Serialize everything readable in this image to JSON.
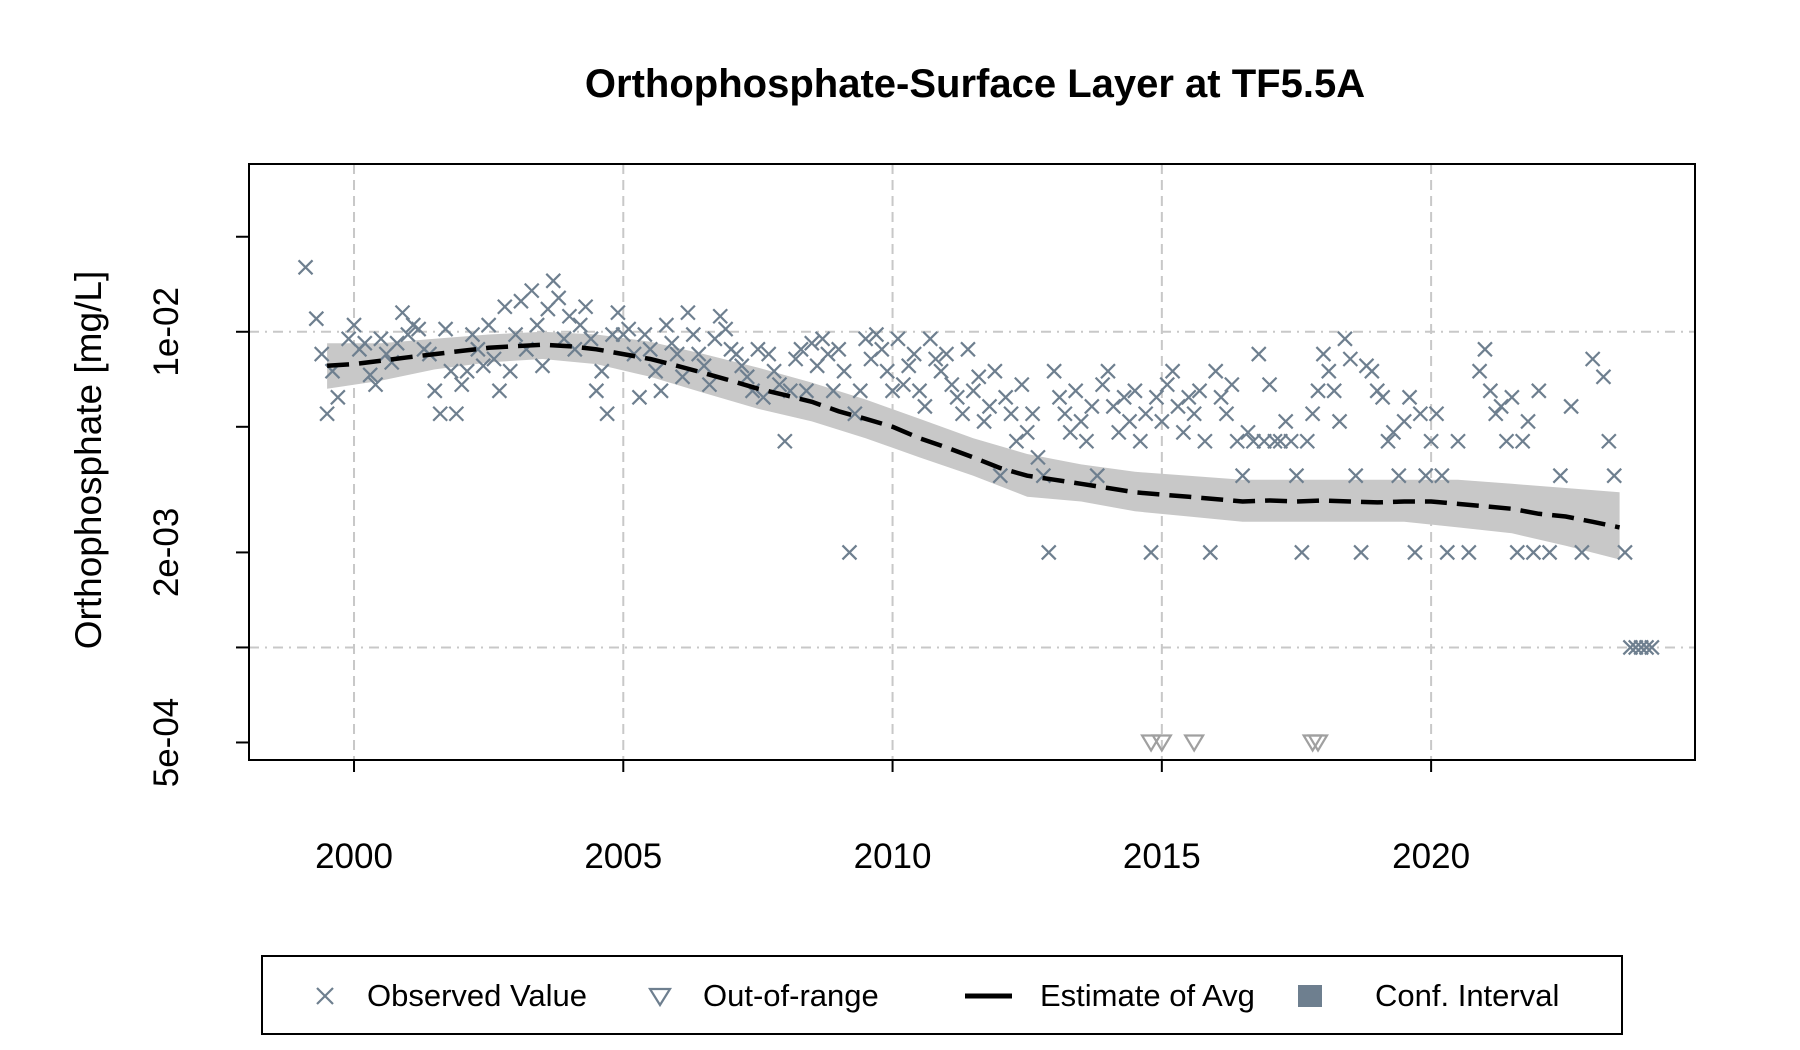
{
  "chart_data": {
    "type": "scatter",
    "title": "Orthophosphate-Surface Layer at TF5.5A",
    "ylabel": "Orthophosphate [mg/L]",
    "xlabel": "",
    "xlim": [
      1998.05,
      2024.9
    ],
    "x_ticks": [
      2000,
      2005,
      2010,
      2015,
      2020
    ],
    "x_tick_labels": [
      "2000",
      "2005",
      "2010",
      "2015",
      "2020"
    ],
    "y_scale": "log",
    "ylim": [
      0.00044,
      0.034
    ],
    "y_ticks": [
      0.0005,
      0.001,
      0.002,
      0.005,
      0.01,
      0.02
    ],
    "y_tick_labels": [
      {
        "value": 0.0005,
        "label": "5e-04"
      },
      {
        "value": 0.002,
        "label": "2e-03"
      },
      {
        "value": 0.01,
        "label": "1e-02"
      }
    ],
    "y_grid": [
      0.001,
      0.01
    ],
    "grid": true,
    "colors": {
      "points": "#6e7f8f",
      "out_of_range": "#a0a0a0",
      "line": "#000000",
      "ci": "#c8c8c8",
      "legend_ci": "#6e7f8f"
    },
    "legend": {
      "placement": "bottom",
      "items": [
        {
          "label": "Observed Value",
          "symbol": "x"
        },
        {
          "label": "Out-of-range",
          "symbol": "triangle-down"
        },
        {
          "label": "Estimate of Avg",
          "symbol": "dashed-line"
        },
        {
          "label": "Conf. Interval",
          "symbol": "square"
        }
      ]
    },
    "observed": [
      [
        1999.1,
        0.016
      ],
      [
        1999.3,
        0.011
      ],
      [
        1999.4,
        0.0085
      ],
      [
        1999.5,
        0.0055
      ],
      [
        1999.6,
        0.0075
      ],
      [
        1999.7,
        0.0062
      ],
      [
        1999.9,
        0.0095
      ],
      [
        2000.0,
        0.0105
      ],
      [
        2000.1,
        0.0088
      ],
      [
        2000.2,
        0.0092
      ],
      [
        2000.3,
        0.0073
      ],
      [
        2000.4,
        0.0068
      ],
      [
        2000.5,
        0.0095
      ],
      [
        2000.6,
        0.0085
      ],
      [
        2000.7,
        0.008
      ],
      [
        2000.8,
        0.0092
      ],
      [
        2000.9,
        0.0115
      ],
      [
        2001.0,
        0.0098
      ],
      [
        2001.1,
        0.0105
      ],
      [
        2001.2,
        0.0102
      ],
      [
        2001.3,
        0.0088
      ],
      [
        2001.4,
        0.0085
      ],
      [
        2001.5,
        0.0065
      ],
      [
        2001.6,
        0.0055
      ],
      [
        2001.7,
        0.0102
      ],
      [
        2001.8,
        0.0075
      ],
      [
        2001.9,
        0.0055
      ],
      [
        2002.0,
        0.0068
      ],
      [
        2002.1,
        0.0075
      ],
      [
        2002.2,
        0.0098
      ],
      [
        2002.3,
        0.0088
      ],
      [
        2002.4,
        0.0078
      ],
      [
        2002.5,
        0.0105
      ],
      [
        2002.6,
        0.0082
      ],
      [
        2002.7,
        0.0065
      ],
      [
        2002.8,
        0.012
      ],
      [
        2002.9,
        0.0075
      ],
      [
        2003.0,
        0.0098
      ],
      [
        2003.1,
        0.0125
      ],
      [
        2003.2,
        0.0088
      ],
      [
        2003.3,
        0.0135
      ],
      [
        2003.4,
        0.0105
      ],
      [
        2003.5,
        0.0078
      ],
      [
        2003.6,
        0.0118
      ],
      [
        2003.7,
        0.0145
      ],
      [
        2003.8,
        0.0128
      ],
      [
        2003.9,
        0.0095
      ],
      [
        2004.0,
        0.0112
      ],
      [
        2004.1,
        0.0088
      ],
      [
        2004.2,
        0.0105
      ],
      [
        2004.3,
        0.012
      ],
      [
        2004.4,
        0.0095
      ],
      [
        2004.5,
        0.0065
      ],
      [
        2004.6,
        0.0075
      ],
      [
        2004.7,
        0.0055
      ],
      [
        2004.8,
        0.0098
      ],
      [
        2004.9,
        0.0115
      ],
      [
        2005.0,
        0.0098
      ],
      [
        2005.1,
        0.0102
      ],
      [
        2005.2,
        0.0085
      ],
      [
        2005.3,
        0.0062
      ],
      [
        2005.4,
        0.0098
      ],
      [
        2005.5,
        0.0088
      ],
      [
        2005.6,
        0.0075
      ],
      [
        2005.7,
        0.0065
      ],
      [
        2005.8,
        0.0105
      ],
      [
        2005.9,
        0.0092
      ],
      [
        2006.0,
        0.0085
      ],
      [
        2006.1,
        0.0072
      ],
      [
        2006.2,
        0.0115
      ],
      [
        2006.3,
        0.0098
      ],
      [
        2006.4,
        0.0085
      ],
      [
        2006.5,
        0.0078
      ],
      [
        2006.6,
        0.0068
      ],
      [
        2006.7,
        0.0095
      ],
      [
        2006.8,
        0.0112
      ],
      [
        2006.9,
        0.0102
      ],
      [
        2007.0,
        0.0088
      ],
      [
        2007.1,
        0.0085
      ],
      [
        2007.2,
        0.0078
      ],
      [
        2007.3,
        0.0072
      ],
      [
        2007.4,
        0.0065
      ],
      [
        2007.5,
        0.0088
      ],
      [
        2007.6,
        0.0062
      ],
      [
        2007.7,
        0.0085
      ],
      [
        2007.8,
        0.0075
      ],
      [
        2007.9,
        0.0068
      ],
      [
        2008.0,
        0.0045
      ],
      [
        2008.1,
        0.0065
      ],
      [
        2008.2,
        0.0082
      ],
      [
        2008.3,
        0.0088
      ],
      [
        2008.4,
        0.0065
      ],
      [
        2008.5,
        0.0092
      ],
      [
        2008.6,
        0.0078
      ],
      [
        2008.7,
        0.0095
      ],
      [
        2008.8,
        0.0085
      ],
      [
        2008.9,
        0.0065
      ],
      [
        2009.0,
        0.0088
      ],
      [
        2009.1,
        0.0075
      ],
      [
        2009.2,
        0.002
      ],
      [
        2009.3,
        0.0055
      ],
      [
        2009.4,
        0.0065
      ],
      [
        2009.5,
        0.0095
      ],
      [
        2009.6,
        0.0082
      ],
      [
        2009.7,
        0.0098
      ],
      [
        2009.8,
        0.0088
      ],
      [
        2009.9,
        0.0075
      ],
      [
        2010.0,
        0.0065
      ],
      [
        2010.1,
        0.0095
      ],
      [
        2010.2,
        0.0068
      ],
      [
        2010.3,
        0.0078
      ],
      [
        2010.4,
        0.0085
      ],
      [
        2010.5,
        0.0065
      ],
      [
        2010.6,
        0.0058
      ],
      [
        2010.7,
        0.0095
      ],
      [
        2010.8,
        0.0082
      ],
      [
        2010.9,
        0.0075
      ],
      [
        2011.0,
        0.0085
      ],
      [
        2011.1,
        0.0068
      ],
      [
        2011.2,
        0.0062
      ],
      [
        2011.3,
        0.0055
      ],
      [
        2011.4,
        0.0088
      ],
      [
        2011.5,
        0.0065
      ],
      [
        2011.6,
        0.0072
      ],
      [
        2011.7,
        0.0052
      ],
      [
        2011.8,
        0.0058
      ],
      [
        2011.9,
        0.0075
      ],
      [
        2012.0,
        0.0035
      ],
      [
        2012.1,
        0.0062
      ],
      [
        2012.2,
        0.0055
      ],
      [
        2012.3,
        0.0045
      ],
      [
        2012.4,
        0.0068
      ],
      [
        2012.5,
        0.0048
      ],
      [
        2012.6,
        0.0055
      ],
      [
        2012.7,
        0.004
      ],
      [
        2012.8,
        0.0035
      ],
      [
        2012.9,
        0.002
      ],
      [
        2013.0,
        0.0075
      ],
      [
        2013.1,
        0.0062
      ],
      [
        2013.2,
        0.0055
      ],
      [
        2013.3,
        0.0048
      ],
      [
        2013.4,
        0.0065
      ],
      [
        2013.5,
        0.0052
      ],
      [
        2013.6,
        0.0045
      ],
      [
        2013.7,
        0.0058
      ],
      [
        2013.8,
        0.0035
      ],
      [
        2013.9,
        0.0068
      ],
      [
        2014.0,
        0.0075
      ],
      [
        2014.1,
        0.0058
      ],
      [
        2014.2,
        0.0048
      ],
      [
        2014.3,
        0.0062
      ],
      [
        2014.4,
        0.0052
      ],
      [
        2014.5,
        0.0065
      ],
      [
        2014.6,
        0.0045
      ],
      [
        2014.7,
        0.0055
      ],
      [
        2014.8,
        0.002
      ],
      [
        2014.9,
        0.0062
      ],
      [
        2015.0,
        0.0052
      ],
      [
        2015.1,
        0.0068
      ],
      [
        2015.2,
        0.0075
      ],
      [
        2015.3,
        0.0058
      ],
      [
        2015.4,
        0.0048
      ],
      [
        2015.5,
        0.0062
      ],
      [
        2015.6,
        0.0055
      ],
      [
        2015.7,
        0.0065
      ],
      [
        2015.8,
        0.0045
      ],
      [
        2015.9,
        0.002
      ],
      [
        2016.0,
        0.0075
      ],
      [
        2016.1,
        0.0062
      ],
      [
        2016.2,
        0.0055
      ],
      [
        2016.3,
        0.0068
      ],
      [
        2016.4,
        0.0045
      ],
      [
        2016.5,
        0.0035
      ],
      [
        2016.6,
        0.0048
      ],
      [
        2016.7,
        0.0045
      ],
      [
        2016.8,
        0.0085
      ],
      [
        2016.9,
        0.0045
      ],
      [
        2017.0,
        0.0068
      ],
      [
        2017.1,
        0.0045
      ],
      [
        2017.2,
        0.0045
      ],
      [
        2017.3,
        0.0052
      ],
      [
        2017.4,
        0.0045
      ],
      [
        2017.5,
        0.0035
      ],
      [
        2017.6,
        0.002
      ],
      [
        2017.7,
        0.0045
      ],
      [
        2017.8,
        0.0055
      ],
      [
        2017.9,
        0.0065
      ],
      [
        2018.0,
        0.0085
      ],
      [
        2018.1,
        0.0075
      ],
      [
        2018.2,
        0.0065
      ],
      [
        2018.3,
        0.0052
      ],
      [
        2018.4,
        0.0095
      ],
      [
        2018.5,
        0.0082
      ],
      [
        2018.6,
        0.0035
      ],
      [
        2018.7,
        0.002
      ],
      [
        2018.8,
        0.0078
      ],
      [
        2018.9,
        0.0075
      ],
      [
        2019.0,
        0.0065
      ],
      [
        2019.1,
        0.0062
      ],
      [
        2019.2,
        0.0045
      ],
      [
        2019.3,
        0.0048
      ],
      [
        2019.4,
        0.0035
      ],
      [
        2019.5,
        0.0052
      ],
      [
        2019.6,
        0.0062
      ],
      [
        2019.7,
        0.002
      ],
      [
        2019.8,
        0.0055
      ],
      [
        2019.9,
        0.0035
      ],
      [
        2020.0,
        0.0045
      ],
      [
        2020.1,
        0.0055
      ],
      [
        2020.2,
        0.0035
      ],
      [
        2020.3,
        0.002
      ],
      [
        2020.5,
        0.0045
      ],
      [
        2020.7,
        0.002
      ],
      [
        2020.9,
        0.0075
      ],
      [
        2021.0,
        0.0088
      ],
      [
        2021.1,
        0.0065
      ],
      [
        2021.2,
        0.0055
      ],
      [
        2021.3,
        0.0058
      ],
      [
        2021.4,
        0.0045
      ],
      [
        2021.5,
        0.0062
      ],
      [
        2021.6,
        0.002
      ],
      [
        2021.7,
        0.0045
      ],
      [
        2021.8,
        0.0052
      ],
      [
        2021.9,
        0.002
      ],
      [
        2022.0,
        0.0065
      ],
      [
        2022.2,
        0.002
      ],
      [
        2022.4,
        0.0035
      ],
      [
        2022.6,
        0.0058
      ],
      [
        2022.8,
        0.002
      ],
      [
        2023.0,
        0.0082
      ],
      [
        2023.2,
        0.0072
      ],
      [
        2023.3,
        0.0045
      ],
      [
        2023.4,
        0.0035
      ],
      [
        2023.6,
        0.002
      ],
      [
        2023.7,
        0.001
      ],
      [
        2023.8,
        0.001
      ],
      [
        2023.9,
        0.001
      ],
      [
        2024.0,
        0.001
      ],
      [
        2024.1,
        0.001
      ]
    ],
    "out_of_range": [
      [
        2014.8,
        0.0005
      ],
      [
        2015.0,
        0.0005
      ],
      [
        2015.6,
        0.0005
      ],
      [
        2017.8,
        0.0005
      ],
      [
        2017.9,
        0.0005
      ]
    ],
    "estimate": [
      [
        1999.5,
        0.0078
      ],
      [
        2000.0,
        0.0079
      ],
      [
        2000.5,
        0.0081
      ],
      [
        2001.0,
        0.0083
      ],
      [
        2001.5,
        0.0085
      ],
      [
        2002.0,
        0.0087
      ],
      [
        2002.5,
        0.0089
      ],
      [
        2003.0,
        0.009
      ],
      [
        2003.5,
        0.0091
      ],
      [
        2004.0,
        0.009
      ],
      [
        2004.5,
        0.0088
      ],
      [
        2005.0,
        0.0085
      ],
      [
        2005.5,
        0.0082
      ],
      [
        2006.0,
        0.0078
      ],
      [
        2006.5,
        0.0074
      ],
      [
        2007.0,
        0.007
      ],
      [
        2007.5,
        0.0066
      ],
      [
        2008.0,
        0.0063
      ],
      [
        2008.5,
        0.006
      ],
      [
        2009.0,
        0.0056
      ],
      [
        2009.5,
        0.0053
      ],
      [
        2010.0,
        0.005
      ],
      [
        2010.5,
        0.0046
      ],
      [
        2011.0,
        0.0043
      ],
      [
        2011.5,
        0.004
      ],
      [
        2012.0,
        0.0037
      ],
      [
        2012.5,
        0.0035
      ],
      [
        2013.0,
        0.0034
      ],
      [
        2013.5,
        0.0033
      ],
      [
        2014.0,
        0.0032
      ],
      [
        2014.5,
        0.0031
      ],
      [
        2015.0,
        0.00305
      ],
      [
        2015.5,
        0.003
      ],
      [
        2016.0,
        0.00295
      ],
      [
        2016.5,
        0.0029
      ],
      [
        2017.0,
        0.00292
      ],
      [
        2017.5,
        0.0029
      ],
      [
        2018.0,
        0.00292
      ],
      [
        2018.5,
        0.0029
      ],
      [
        2019.0,
        0.00288
      ],
      [
        2019.5,
        0.0029
      ],
      [
        2020.0,
        0.0029
      ],
      [
        2020.5,
        0.00285
      ],
      [
        2021.0,
        0.0028
      ],
      [
        2021.5,
        0.00275
      ],
      [
        2022.0,
        0.00265
      ],
      [
        2022.5,
        0.0026
      ],
      [
        2023.0,
        0.0025
      ],
      [
        2023.5,
        0.0024
      ]
    ],
    "ci_upper": [
      [
        1999.5,
        0.0092
      ],
      [
        2000.5,
        0.0092
      ],
      [
        2001.5,
        0.0095
      ],
      [
        2002.5,
        0.0098
      ],
      [
        2003.5,
        0.01
      ],
      [
        2004.5,
        0.0098
      ],
      [
        2005.5,
        0.0093
      ],
      [
        2006.5,
        0.0085
      ],
      [
        2007.5,
        0.0077
      ],
      [
        2008.5,
        0.0069
      ],
      [
        2009.5,
        0.0061
      ],
      [
        2010.5,
        0.0053
      ],
      [
        2011.5,
        0.0046
      ],
      [
        2012.5,
        0.0041
      ],
      [
        2013.5,
        0.0038
      ],
      [
        2014.5,
        0.0036
      ],
      [
        2015.5,
        0.0035
      ],
      [
        2016.5,
        0.0034
      ],
      [
        2017.5,
        0.0034
      ],
      [
        2018.5,
        0.0034
      ],
      [
        2019.5,
        0.0034
      ],
      [
        2020.5,
        0.0034
      ],
      [
        2021.5,
        0.0033
      ],
      [
        2022.5,
        0.0032
      ],
      [
        2023.5,
        0.0031
      ]
    ],
    "ci_lower": [
      [
        1999.5,
        0.0066
      ],
      [
        2000.5,
        0.007
      ],
      [
        2001.5,
        0.0076
      ],
      [
        2002.5,
        0.008
      ],
      [
        2003.5,
        0.0082
      ],
      [
        2004.5,
        0.0079
      ],
      [
        2005.5,
        0.0072
      ],
      [
        2006.5,
        0.0064
      ],
      [
        2007.5,
        0.0057
      ],
      [
        2008.5,
        0.0052
      ],
      [
        2009.5,
        0.0046
      ],
      [
        2010.5,
        0.004
      ],
      [
        2011.5,
        0.0035
      ],
      [
        2012.5,
        0.003
      ],
      [
        2013.5,
        0.0029
      ],
      [
        2014.5,
        0.0027
      ],
      [
        2015.5,
        0.0026
      ],
      [
        2016.5,
        0.0025
      ],
      [
        2017.5,
        0.0025
      ],
      [
        2018.5,
        0.0025
      ],
      [
        2019.5,
        0.0025
      ],
      [
        2020.5,
        0.0024
      ],
      [
        2021.5,
        0.0023
      ],
      [
        2022.5,
        0.0021
      ],
      [
        2023.5,
        0.0019
      ]
    ]
  }
}
